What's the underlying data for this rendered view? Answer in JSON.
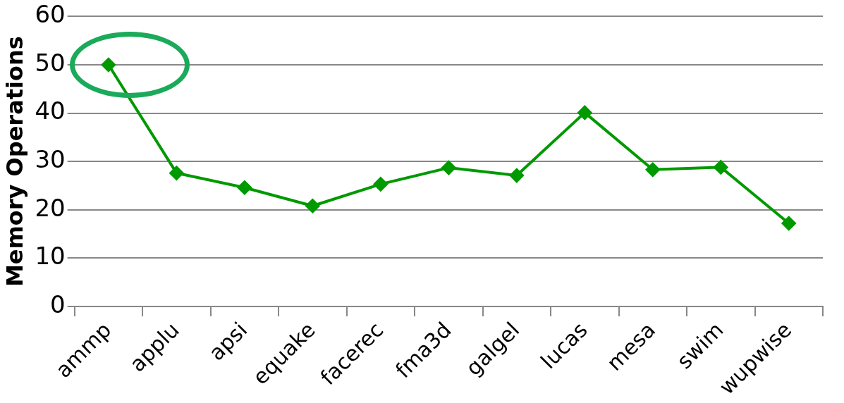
{
  "chart_data": {
    "type": "line",
    "ylabel": "Memory Operations",
    "categories": [
      "ammp",
      "applu",
      "apsi",
      "equake",
      "facerec",
      "fma3d",
      "galgel",
      "lucas",
      "mesa",
      "swim",
      "wupwise"
    ],
    "series": [
      {
        "color": "#009900",
        "values": [
          50,
          27.6,
          24.6,
          20.8,
          25.3,
          28.7,
          27.1,
          40.1,
          28.3,
          28.8,
          17.2
        ]
      }
    ],
    "ylim": [
      0,
      60
    ],
    "yticks": [
      0,
      10,
      20,
      30,
      40,
      50,
      60
    ],
    "grid": "y",
    "marker": "diamond",
    "line_style": "solid",
    "legend": false
  }
}
